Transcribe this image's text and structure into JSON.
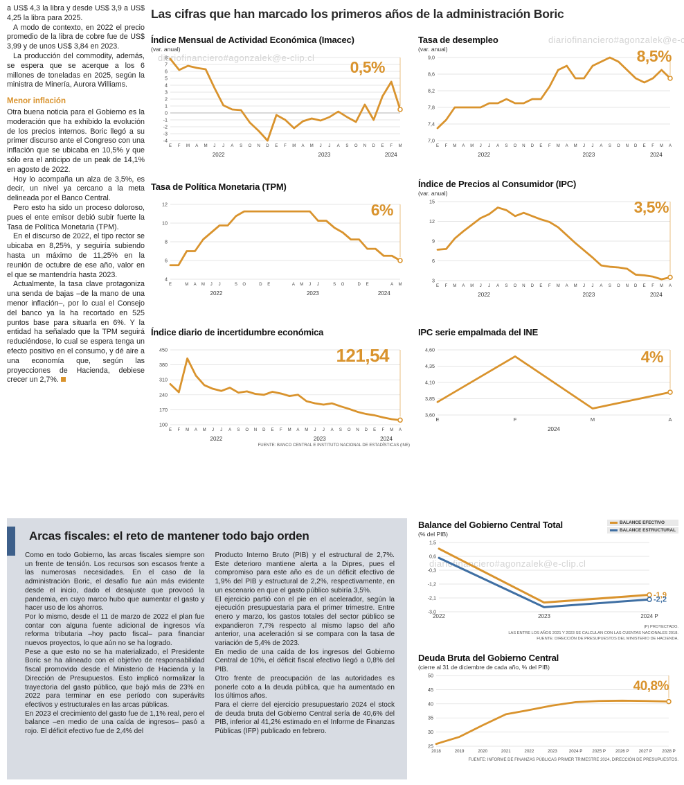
{
  "colors": {
    "accent": "#D9932D",
    "blue": "#3F6FA3",
    "fiscal_box_bg": "#D8DCE3",
    "fiscal_accent_bar": "#3D5F8A"
  },
  "watermark": "diariofinanciero#agonzalek@e-clip.cl",
  "headline": "Las cifras que han marcado los primeros años de la administración Boric",
  "left_column": {
    "paragraphs_top": [
      "a US$ 4,3 la libra y desde US$ 3,9 a US$ 4,25 la libra para 2025.",
      "A modo de contexto, en 2022 el precio promedio de la libra de cobre fue de US$ 3,99 y de unos US$ 3,84 en 2023.",
      "La producción del commodity, además, se espera que se acerque a los 6 millones de toneladas en 2025, según la ministra de Minería, Aurora Williams."
    ],
    "subhead": "Menor inflación",
    "paragraphs_bottom": [
      "Otra buena noticia para el Gobierno es la moderación que ha exhibido la evolución de los precios internos. Boric llegó a su primer discurso ante el Congreso con una inflación que se ubicaba en 10,5% y que sólo era el anticipo de un peak de 14,1% en agosto de 2022.",
      "Hoy lo acompaña un alza de 3,5%, es decir, un nivel ya cercano a la meta delineada por el Banco Central.",
      "Pero esto ha sido un proceso doloroso, pues el ente emisor debió subir fuerte la Tasa de Política Monetaria (TPM).",
      "En el discurso de 2022, el tipo rector se ubicaba en 8,25%, y seguiría subiendo hasta un máximo de 11,25% en la reunión de octubre de ese año, valor en el que se mantendría hasta 2023.",
      "Actualmente, la tasa clave protagoniza una senda de bajas –de la mano de una menor inflación–, por lo cual el Consejo del banco ya la ha recortado en 525 puntos base para situarla en 6%. Y la entidad ha señalado que la TPM seguirá reduciéndose, lo cual se espera tenga un efecto positivo en el consumo, y dé aire a una economía que, según las proyecciones de Hacienda, debiese crecer un 2,7%."
    ]
  },
  "fiscal": {
    "title": "Arcas fiscales: el reto de mantener todo bajo orden",
    "col1": [
      "Como en todo Gobierno, las arcas fiscales siempre son un frente de tensión. Los recursos son escasos frente a las numerosas necesidades. En el caso de la administración Boric, el desafío fue aún más evidente desde el inicio, dado el desajuste que provocó la pandemia, en cuyo marco hubo que aumentar el gasto y hacer uso de los ahorros.",
      "Por lo mismo, desde el 11 de marzo de 2022 el plan fue contar con alguna fuente adicional de ingresos vía reforma tributaria –hoy pacto fiscal– para financiar nuevos proyectos, lo que aún no se ha logrado.",
      "Pese a que esto no se ha materializado, el Presidente Boric se ha alineado con el objetivo de responsabilidad fiscal promovido desde el Ministerio de Hacienda y la Dirección de Presupuestos. Esto implicó normalizar la trayectoria del gasto público, que bajó más de 23% en 2022 para terminar en ese período con superávits efectivos y estructurales en las arcas públicas.",
      "En 2023 el crecimiento del gasto fue de 1,1% real, pero el balance –en medio de una caída de ingresos– pasó a rojo. El déficit efectivo fue de 2,4% del"
    ],
    "col2": [
      "Producto Interno Bruto (PIB) y el estructural de 2,7%. Este deterioro mantiene alerta a la Dipres, pues el compromiso para este año es de un déficit efectivo de 1,9% del PIB y estructural de 2,2%, respectivamente, en un escenario en que el gasto público subiría 3,5%.",
      "El ejercicio partió con el pie en el acelerador, según la ejecución presupuestaria para el primer trimestre. Entre enero y marzo, los gastos totales del sector público se expandieron 7,7% respecto al mismo lapso del año anterior, una aceleración si se compara con la tasa de variación de 5,4% de 2023.",
      "En medio de una caída de los ingresos del Gobierno Central de 10%, el déficit fiscal efectivo llegó a 0,8% del PIB.",
      "Otro frente de preocupación de las autoridades es ponerle coto a la deuda pública, que ha aumentado en los últimos años.",
      "Para el cierre del ejercicio presupuestario 2024 el stock de deuda bruta del Gobierno Central sería de 40,6% del PIB, inferior al 41,2% estimado en el Informe de Finanzas Públicas (IFP) publicado en febrero."
    ]
  },
  "chart_data": [
    {
      "id": "imacec",
      "type": "line",
      "title": "Índice Mensual de Actividad Económica (Imacec)",
      "subtitle": "(var. anual)",
      "highlight": "0,5%",
      "ylim": [
        -4,
        8
      ],
      "zero_line": true,
      "refline": true,
      "yticks": [
        [
          8,
          "8"
        ],
        [
          7,
          "7"
        ],
        [
          6,
          "6"
        ],
        [
          5,
          "5"
        ],
        [
          4,
          "4"
        ],
        [
          3,
          "3"
        ],
        [
          2,
          "2"
        ],
        [
          1,
          "1"
        ],
        [
          0,
          "0"
        ],
        [
          -1,
          "-1"
        ],
        [
          -2,
          "-2"
        ],
        [
          -3,
          "-3"
        ],
        [
          -4,
          "-4"
        ]
      ],
      "x_labels": [
        "E",
        "F",
        "M",
        "A",
        "M",
        "J",
        "J",
        "A",
        "S",
        "O",
        "N",
        "D",
        "E",
        "F",
        "M",
        "A",
        "M",
        "J",
        "J",
        "A",
        "S",
        "O",
        "N",
        "D",
        "E",
        "F",
        "M"
      ],
      "years": [
        {
          "l": "2022",
          "f": 0.21
        },
        {
          "l": "2023",
          "f": 0.67
        },
        {
          "l": "2024",
          "f": 0.96
        }
      ],
      "series": [
        {
          "name": "Imacec var. anual",
          "color": "#D9932D",
          "values": [
            7.8,
            6.2,
            6.8,
            6.5,
            6.3,
            3.6,
            1.1,
            0.5,
            0.4,
            -1.4,
            -2.6,
            -4.0,
            -0.3,
            -1.0,
            -2.2,
            -1.2,
            -0.8,
            -1.1,
            -0.6,
            0.2,
            -0.6,
            -1.3,
            1.2,
            -1.0,
            2.4,
            4.5,
            0.5
          ]
        }
      ]
    },
    {
      "id": "desempleo",
      "type": "line",
      "title": "Tasa de desempleo",
      "subtitle": "(var. anual)",
      "highlight": "8,5%",
      "ylim": [
        7.0,
        9.0
      ],
      "refline": true,
      "yticks": [
        [
          9.0,
          "9,0"
        ],
        [
          8.6,
          "8,6"
        ],
        [
          8.2,
          "8,2"
        ],
        [
          7.8,
          "7,8"
        ],
        [
          7.4,
          "7,4"
        ],
        [
          7.0,
          "7,0"
        ]
      ],
      "x_labels": [
        "E",
        "F",
        "M",
        "A",
        "M",
        "J",
        "J",
        "A",
        "S",
        "O",
        "N",
        "D",
        "E",
        "F",
        "M",
        "A",
        "M",
        "J",
        "J",
        "A",
        "S",
        "O",
        "N",
        "D",
        "E",
        "F",
        "M",
        "A"
      ],
      "years": [
        {
          "l": "2022",
          "f": 0.2
        },
        {
          "l": "2023",
          "f": 0.65
        },
        {
          "l": "2024",
          "f": 0.94
        }
      ],
      "series": [
        {
          "name": "Tasa de desempleo",
          "color": "#D9932D",
          "values": [
            7.3,
            7.5,
            7.8,
            7.8,
            7.8,
            7.8,
            7.9,
            7.9,
            8.0,
            7.9,
            7.9,
            8.0,
            8.0,
            8.3,
            8.7,
            8.8,
            8.5,
            8.5,
            8.8,
            8.9,
            9.0,
            8.9,
            8.7,
            8.5,
            8.4,
            8.5,
            8.7,
            8.5
          ]
        }
      ]
    },
    {
      "id": "tpm",
      "type": "line",
      "title": "Tasa de Política Monetaria (TPM)",
      "subtitle": "",
      "highlight": "6%",
      "ylim": [
        4,
        12
      ],
      "refline": true,
      "yticks": [
        [
          12,
          "12"
        ],
        [
          10,
          "10"
        ],
        [
          8,
          "8"
        ],
        [
          6,
          "6"
        ],
        [
          4,
          "4"
        ]
      ],
      "x_labels": [
        "E",
        "",
        "M",
        "A",
        "M",
        "J",
        "J",
        "",
        "S",
        "O",
        "",
        "D",
        "E",
        "",
        "",
        "A",
        "M",
        "J",
        "J",
        "",
        "S",
        "O",
        "",
        "D",
        "E",
        "",
        "",
        "A",
        "M"
      ],
      "years": [
        {
          "l": "2022",
          "f": 0.2
        },
        {
          "l": "2023",
          "f": 0.62
        },
        {
          "l": "2024",
          "f": 0.93
        }
      ],
      "series": [
        {
          "name": "TPM",
          "color": "#D9932D",
          "values": [
            5.5,
            5.5,
            7.0,
            7.0,
            8.25,
            9.0,
            9.75,
            9.75,
            10.75,
            11.25,
            11.25,
            11.25,
            11.25,
            11.25,
            11.25,
            11.25,
            11.25,
            11.25,
            10.25,
            10.25,
            9.5,
            9.0,
            8.25,
            8.25,
            7.25,
            7.25,
            6.5,
            6.5,
            6.0
          ]
        }
      ]
    },
    {
      "id": "ipc",
      "type": "line",
      "title": "Índice de Precios al Consumidor (IPC)",
      "subtitle": "(var. anual)",
      "highlight": "3,5%",
      "ylim": [
        3,
        15
      ],
      "refline": true,
      "yticks": [
        [
          15,
          "15"
        ],
        [
          12,
          "12"
        ],
        [
          9,
          "9"
        ],
        [
          6,
          "6"
        ],
        [
          3,
          "3"
        ]
      ],
      "x_labels": [
        "E",
        "F",
        "M",
        "A",
        "M",
        "J",
        "J",
        "A",
        "S",
        "O",
        "N",
        "D",
        "E",
        "F",
        "M",
        "A",
        "M",
        "J",
        "J",
        "A",
        "S",
        "O",
        "N",
        "D",
        "E",
        "F",
        "M",
        "A"
      ],
      "years": [
        {
          "l": "2022",
          "f": 0.2
        },
        {
          "l": "2023",
          "f": 0.65
        },
        {
          "l": "2024",
          "f": 0.94
        }
      ],
      "series": [
        {
          "name": "IPC var. anual",
          "color": "#D9932D",
          "values": [
            7.7,
            7.8,
            9.4,
            10.5,
            11.5,
            12.5,
            13.1,
            14.1,
            13.7,
            12.8,
            13.3,
            12.8,
            12.3,
            11.9,
            11.1,
            9.9,
            8.7,
            7.6,
            6.5,
            5.3,
            5.1,
            5.0,
            4.8,
            3.9,
            3.8,
            3.6,
            3.2,
            3.5
          ]
        }
      ]
    },
    {
      "id": "incertidumbre",
      "type": "line",
      "title": "Índice diario de incertidumbre económica",
      "subtitle": "",
      "highlight": "121,54",
      "ylim": [
        100,
        450
      ],
      "refline": true,
      "yticks": [
        [
          450,
          "450"
        ],
        [
          380,
          "380"
        ],
        [
          310,
          "310"
        ],
        [
          240,
          "240"
        ],
        [
          170,
          "170"
        ],
        [
          100,
          "100"
        ]
      ],
      "x_labels": [
        "E",
        "F",
        "M",
        "A",
        "M",
        "J",
        "J",
        "A",
        "S",
        "O",
        "N",
        "D",
        "E",
        "F",
        "M",
        "A",
        "M",
        "J",
        "J",
        "A",
        "S",
        "O",
        "N",
        "D",
        "E",
        "F",
        "M",
        "A"
      ],
      "years": [
        {
          "l": "2022",
          "f": 0.2
        },
        {
          "l": "2023",
          "f": 0.65
        },
        {
          "l": "2024",
          "f": 0.94
        }
      ],
      "series": [
        {
          "name": "Incertidumbre económica",
          "color": "#D9932D",
          "values": [
            290,
            252,
            410,
            330,
            285,
            268,
            258,
            273,
            250,
            256,
            244,
            240,
            254,
            246,
            234,
            240,
            210,
            200,
            194,
            200,
            186,
            174,
            160,
            150,
            144,
            134,
            126,
            121.54
          ]
        }
      ],
      "source": "FUENTE: BANCO CENTRAL E INSTITUTO NACIONAL DE ESTADÍSTICAS (INE)"
    },
    {
      "id": "ipc-empalmada",
      "type": "line",
      "title": "IPC serie empalmada del INE",
      "subtitle": "",
      "highlight": "4%",
      "ylim": [
        3.6,
        4.6
      ],
      "refline": true,
      "yticks": [
        [
          4.6,
          "4,60"
        ],
        [
          4.35,
          "4,35"
        ],
        [
          4.1,
          "4,10"
        ],
        [
          3.85,
          "3,85"
        ],
        [
          3.6,
          "3,60"
        ]
      ],
      "x_labels": [
        "E",
        "F",
        "M",
        "A"
      ],
      "xfs": 7.5,
      "years": [
        {
          "l": "2024",
          "f": 0.5
        }
      ],
      "series": [
        {
          "name": "IPC serie empalmada",
          "color": "#D9932D",
          "values": [
            3.8,
            4.5,
            3.7,
            3.95
          ]
        }
      ]
    },
    {
      "id": "balance",
      "type": "line",
      "title": "Balance del Gobierno Central Total",
      "subtitle": "(% del PIB)",
      "ylim": [
        -3.0,
        1.5
      ],
      "yticks": [
        [
          1.5,
          "1,5"
        ],
        [
          0.6,
          "0,6"
        ],
        [
          -0.3,
          "-0,3"
        ],
        [
          -1.2,
          "-1,2"
        ],
        [
          -2.1,
          "-2,1"
        ],
        [
          -3.0,
          "-3,0"
        ]
      ],
      "x_labels": [
        "2022",
        "2023",
        "2024 P"
      ],
      "xfs": 8,
      "mr": 42,
      "ml": 30,
      "legend": [
        {
          "label": "BALANCE EFECTIVO",
          "color": "#D9932D"
        },
        {
          "label": "BALANCE ESTRUCTURAL",
          "color": "#3F6FA3"
        }
      ],
      "series": [
        {
          "name": "Balance efectivo",
          "color": "#D9932D",
          "w": 3,
          "values": [
            1.1,
            -2.4,
            -1.9
          ],
          "end_label": "-1,9"
        },
        {
          "name": "Balance estructural",
          "color": "#3F6FA3",
          "w": 3,
          "values": [
            0.5,
            -2.7,
            -2.2
          ],
          "end_label": "-2,2"
        }
      ],
      "notes": [
        "(P) PROYECTADO.",
        "LAS ENTRE LOS AÑOS 2021 Y 2023 SE CALCULAN  CON LAS CUENTAS NACIONALES 2018.",
        "FUENTE: DIRECCIÓN DE PRESUPUESTOS DEL MINISTERIO DE HACIENDA."
      ]
    },
    {
      "id": "deuda-bruta",
      "type": "line",
      "title": "Deuda Bruta del Gobierno Central",
      "subtitle": "(cierre al 31 de diciembre de cada año, % del PIB)",
      "highlight": "40,8%",
      "ylim": [
        25,
        50
      ],
      "refline": true,
      "yticks": [
        [
          50,
          "50"
        ],
        [
          45,
          "45"
        ],
        [
          40,
          "40"
        ],
        [
          35,
          "35"
        ],
        [
          30,
          "30"
        ],
        [
          25,
          "25"
        ]
      ],
      "x_labels": [
        "2018",
        "2019",
        "2020",
        "2021",
        "2022",
        "2023",
        "2024 P",
        "2025 P",
        "2026 P",
        "2027 P",
        "2028 P"
      ],
      "xfs": 6.2,
      "ml": 26,
      "series": [
        {
          "name": "Deuda bruta",
          "color": "#D9932D",
          "w": 2.8,
          "values": [
            25.8,
            28.3,
            32.4,
            36.3,
            37.8,
            39.4,
            40.6,
            41.0,
            41.1,
            41.0,
            40.8
          ]
        }
      ],
      "source": "FUENTE: INFORME DE FINANZAS PÚBLICAS PRIMER TRIMESTRE 2024, DIRECCIÓN DE PRESUPUESTOS."
    }
  ]
}
